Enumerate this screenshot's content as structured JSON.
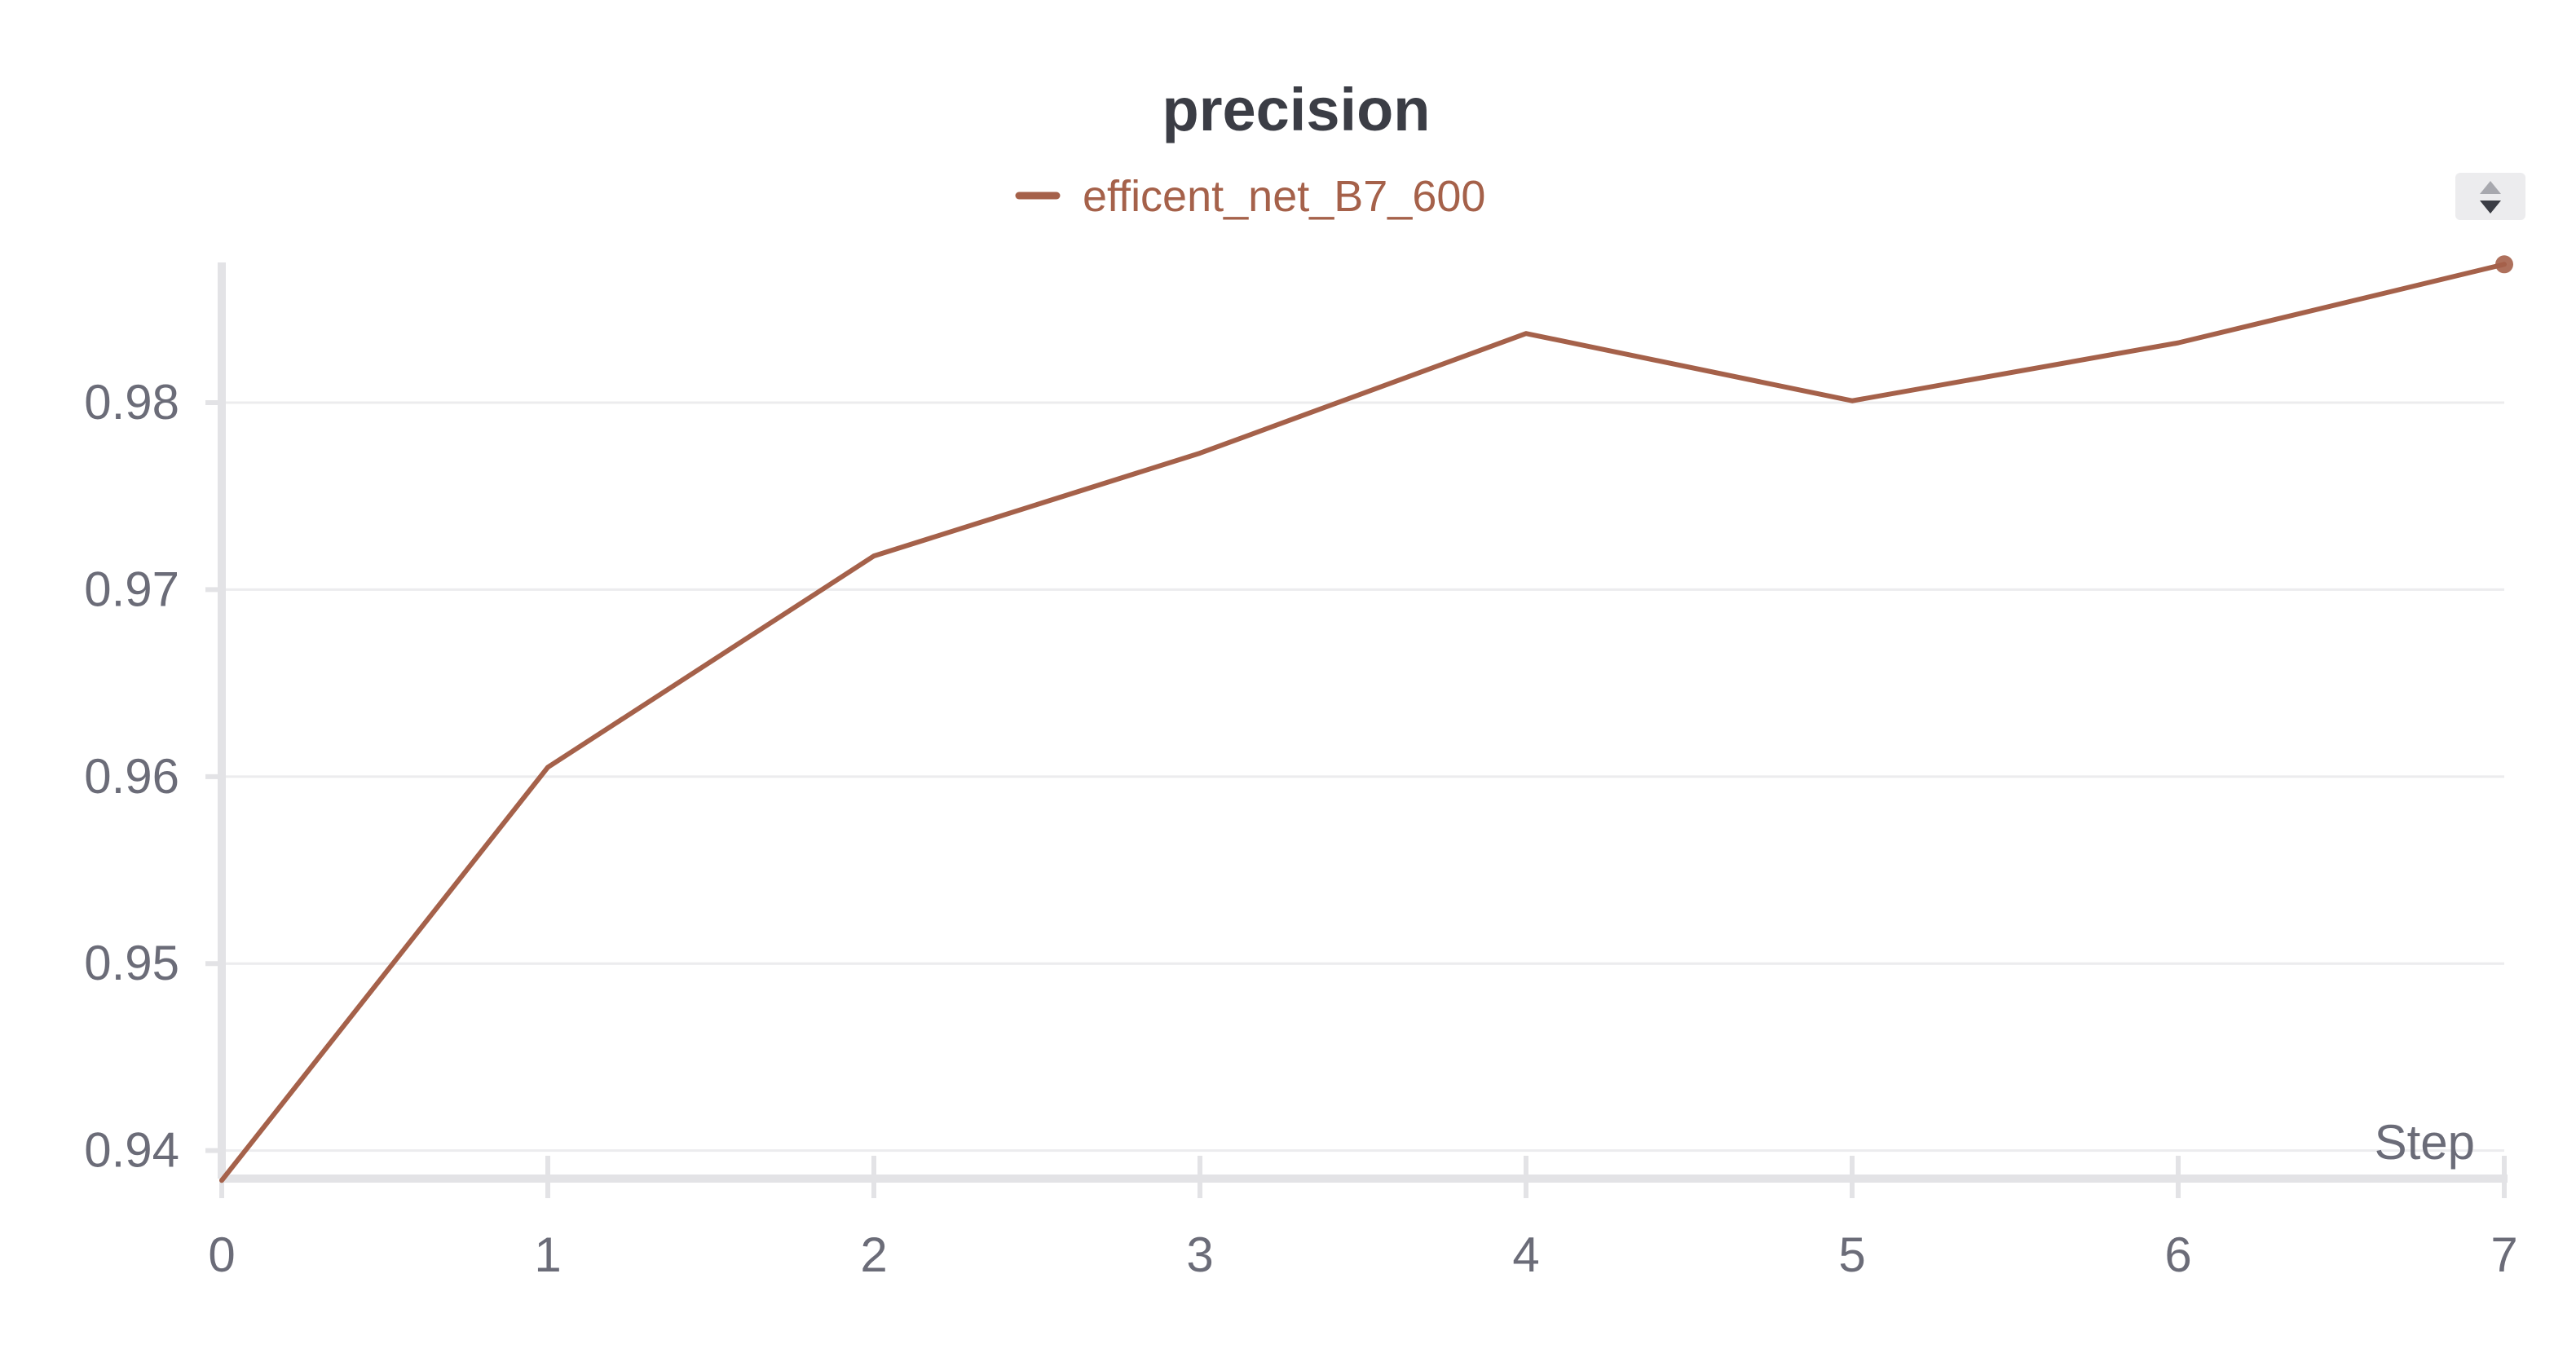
{
  "chart_data": {
    "type": "line",
    "title": "precision",
    "xlabel": "Step",
    "ylabel": "",
    "x": [
      0,
      1,
      2,
      3,
      4,
      5,
      6,
      7
    ],
    "xlim": [
      0,
      7
    ],
    "ylim": [
      0.9385,
      0.9875
    ],
    "x_ticks": [
      "0",
      "1",
      "2",
      "3",
      "4",
      "5",
      "6",
      "7"
    ],
    "y_ticks": [
      {
        "value": 0.94,
        "label": "0.94"
      },
      {
        "value": 0.95,
        "label": "0.95"
      },
      {
        "value": 0.96,
        "label": "0.96"
      },
      {
        "value": 0.97,
        "label": "0.97"
      },
      {
        "value": 0.98,
        "label": "0.98"
      }
    ],
    "grid": true,
    "legend_position": "top-center",
    "series": [
      {
        "name": "efficent_net_B7_600",
        "color": "#a5614a",
        "values": [
          0.9384,
          0.9605,
          0.9718,
          0.9773,
          0.9837,
          0.9801,
          0.9832,
          0.9874
        ]
      }
    ]
  },
  "controls": {
    "sort_icon": "sort-up-down-icon"
  }
}
